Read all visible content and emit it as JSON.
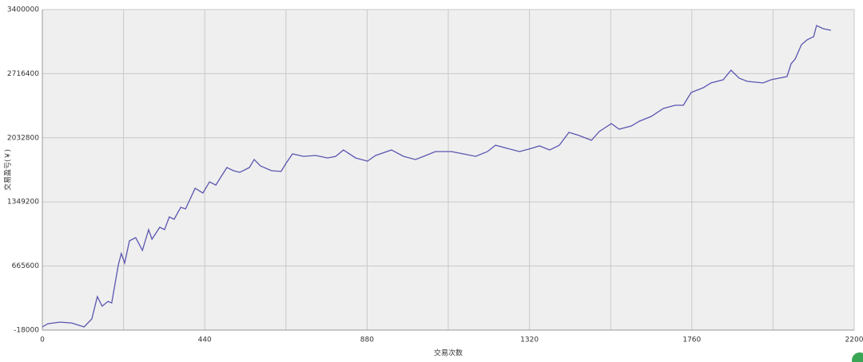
{
  "chart_data": {
    "type": "line",
    "y_label": "交易盈亏(￥)",
    "x_label": "交易次数",
    "xlim": [
      0,
      2200
    ],
    "xticks": [
      0,
      440,
      880,
      1320,
      1760,
      2200
    ],
    "ylim": [
      -18000,
      3400000
    ],
    "yticks": [
      -18000,
      665600,
      1349200,
      2032800,
      2716400,
      3400000
    ],
    "grid": true,
    "series": [
      {
        "color": "#5a56b0",
        "x": [
          0,
          15,
          48,
          80,
          113,
          134,
          149,
          162,
          178,
          188,
          206,
          214,
          223,
          236,
          253,
          271,
          288,
          297,
          318,
          331,
          344,
          357,
          375,
          388,
          414,
          435,
          453,
          470,
          500,
          518,
          535,
          561,
          574,
          591,
          621,
          647,
          660,
          678,
          708,
          741,
          773,
          795,
          816,
          849,
          881,
          903,
          946,
          979,
          1011,
          1033,
          1065,
          1109,
          1141,
          1174,
          1206,
          1228,
          1260,
          1293,
          1325,
          1347,
          1375,
          1401,
          1427,
          1455,
          1488,
          1509,
          1542,
          1563,
          1596,
          1618,
          1650,
          1683,
          1715,
          1737,
          1758,
          1791,
          1812,
          1845,
          1866,
          1888,
          1910,
          1953,
          1975,
          1996,
          2018,
          2029,
          2040,
          2057,
          2072,
          2090,
          2098,
          2116,
          2137
        ],
        "values": [
          16000,
          50000,
          67000,
          58000,
          16000,
          101000,
          339000,
          237000,
          288000,
          271000,
          679000,
          798000,
          696000,
          934000,
          968000,
          832000,
          1053000,
          951000,
          1079000,
          1053000,
          1189000,
          1164000,
          1291000,
          1274000,
          1495000,
          1444000,
          1563000,
          1529000,
          1716000,
          1682000,
          1665000,
          1716000,
          1801000,
          1733000,
          1682000,
          1674000,
          1759000,
          1861000,
          1835000,
          1844000,
          1818000,
          1835000,
          1903000,
          1818000,
          1784000,
          1844000,
          1903000,
          1835000,
          1801000,
          1835000,
          1886000,
          1886000,
          1861000,
          1835000,
          1886000,
          1954000,
          1920000,
          1886000,
          1920000,
          1946000,
          1903000,
          1954000,
          2091000,
          2057000,
          2006000,
          2099000,
          2184000,
          2125000,
          2159000,
          2210000,
          2261000,
          2346000,
          2380000,
          2380000,
          2516000,
          2567000,
          2618000,
          2652000,
          2754000,
          2669000,
          2635000,
          2618000,
          2652000,
          2669000,
          2686000,
          2822000,
          2873000,
          3026000,
          3077000,
          3111000,
          3230000,
          3196000,
          3179000
        ]
      }
    ]
  }
}
